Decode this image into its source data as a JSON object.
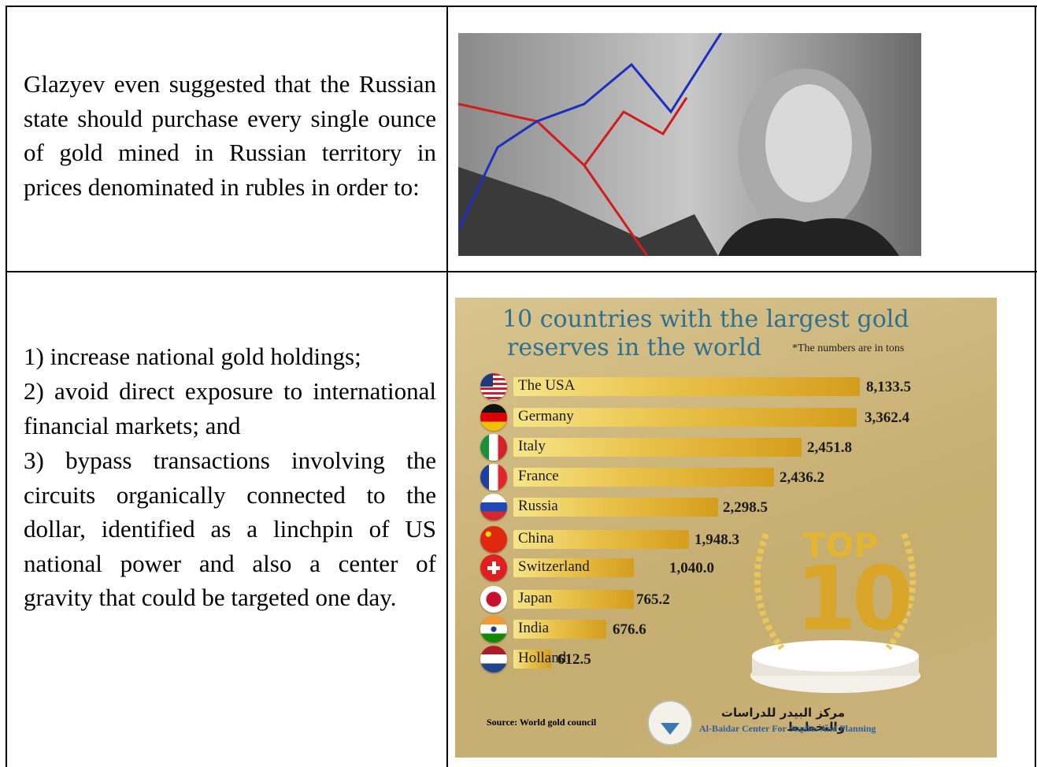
{
  "left_column": {
    "intro": "Glazyev even suggested that the Russian state should purchase every single ounce of gold mined in Russian territory in prices denominated in rubles in order to:",
    "points": [
      "1) increase national gold holdings;",
      "2) avoid direct exposure to international financial markets; and",
      "3) bypass transactions involving the circuits organically connected to the dollar, identified as a linchpin of US national power and also a center of gravity that could be targeted one day."
    ]
  },
  "infographic": {
    "title_line1": "10 countries with the largest gold",
    "title_line2": "reserves in the world",
    "note": "*The numbers are in tons",
    "rows": [
      {
        "country": "The USA",
        "value": "8,133.5"
      },
      {
        "country": "Germany",
        "value": "3,362.4"
      },
      {
        "country": "Italy",
        "value": "2,451.8"
      },
      {
        "country": "France",
        "value": "2,436.2"
      },
      {
        "country": "Russia",
        "value": "2,298.5"
      },
      {
        "country": "China",
        "value": "1,948.3"
      },
      {
        "country": "Switzerland",
        "value": "1,040.0"
      },
      {
        "country": "Japan",
        "value": "765.2"
      },
      {
        "country": "India",
        "value": "676.6"
      },
      {
        "country": "Holland",
        "value": "612.5"
      }
    ],
    "badge_top": "TOP",
    "badge_number": "10",
    "source": "Source: World gold council",
    "org_arabic": "مركز البيدر للدراسات والتخطيط",
    "org_english": "Al-Baidar Center For Studies And Planning"
  }
}
